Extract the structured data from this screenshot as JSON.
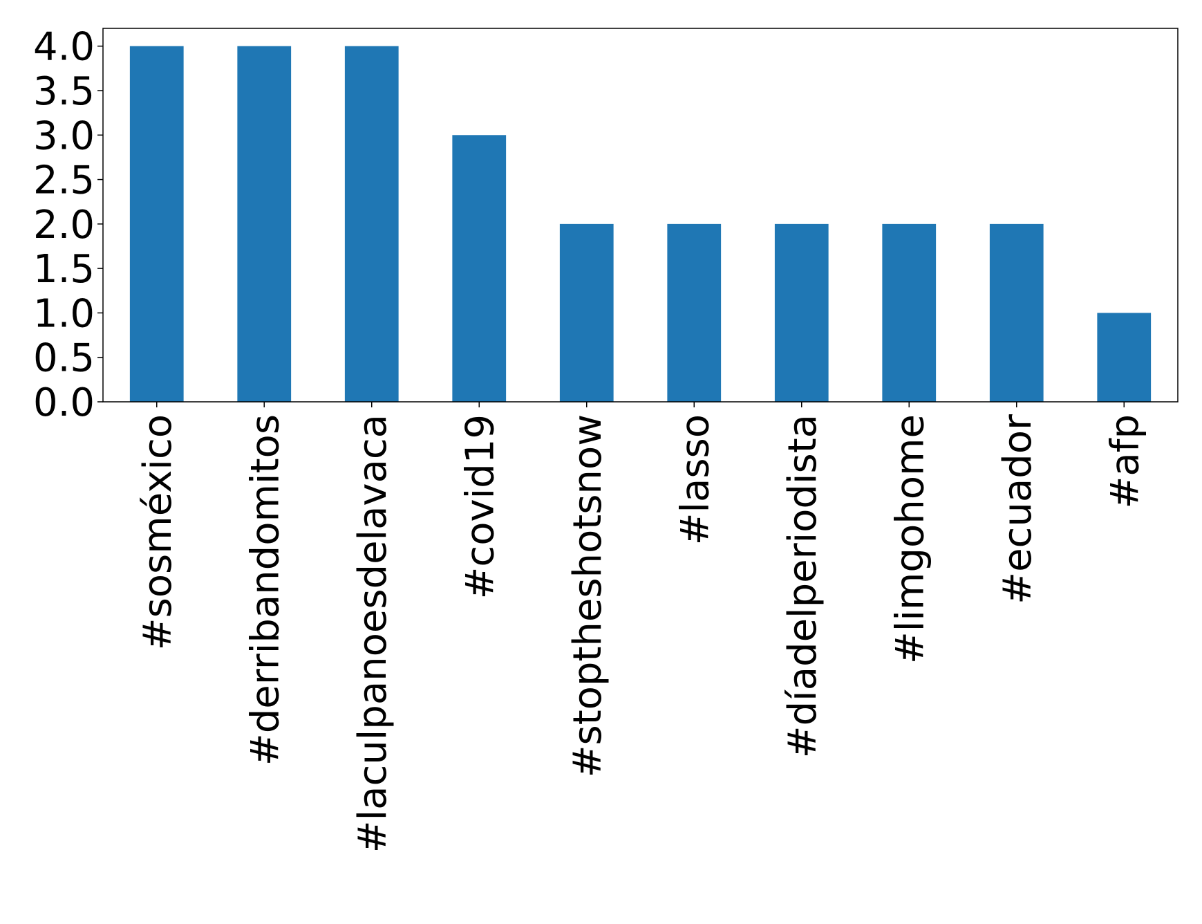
{
  "chart_data": {
    "type": "bar",
    "categories": [
      "#sosméxico",
      "#derribandomitos",
      "#laculpanoesdelavaca",
      "#covid19",
      "#stoptheshotsnow",
      "#lasso",
      "#díadelperiodista",
      "#limgohome",
      "#ecuador",
      "#afp"
    ],
    "values": [
      4,
      4,
      4,
      3,
      2,
      2,
      2,
      2,
      2,
      1
    ],
    "ylim": [
      0,
      4.2
    ],
    "yticks": [
      "0.0",
      "0.5",
      "1.0",
      "1.5",
      "2.0",
      "2.5",
      "3.0",
      "3.5",
      "4.0"
    ],
    "title": "",
    "xlabel": "",
    "ylabel": "",
    "grid": false,
    "bar_color": "#1f77b4",
    "axis_color": "#000000"
  }
}
